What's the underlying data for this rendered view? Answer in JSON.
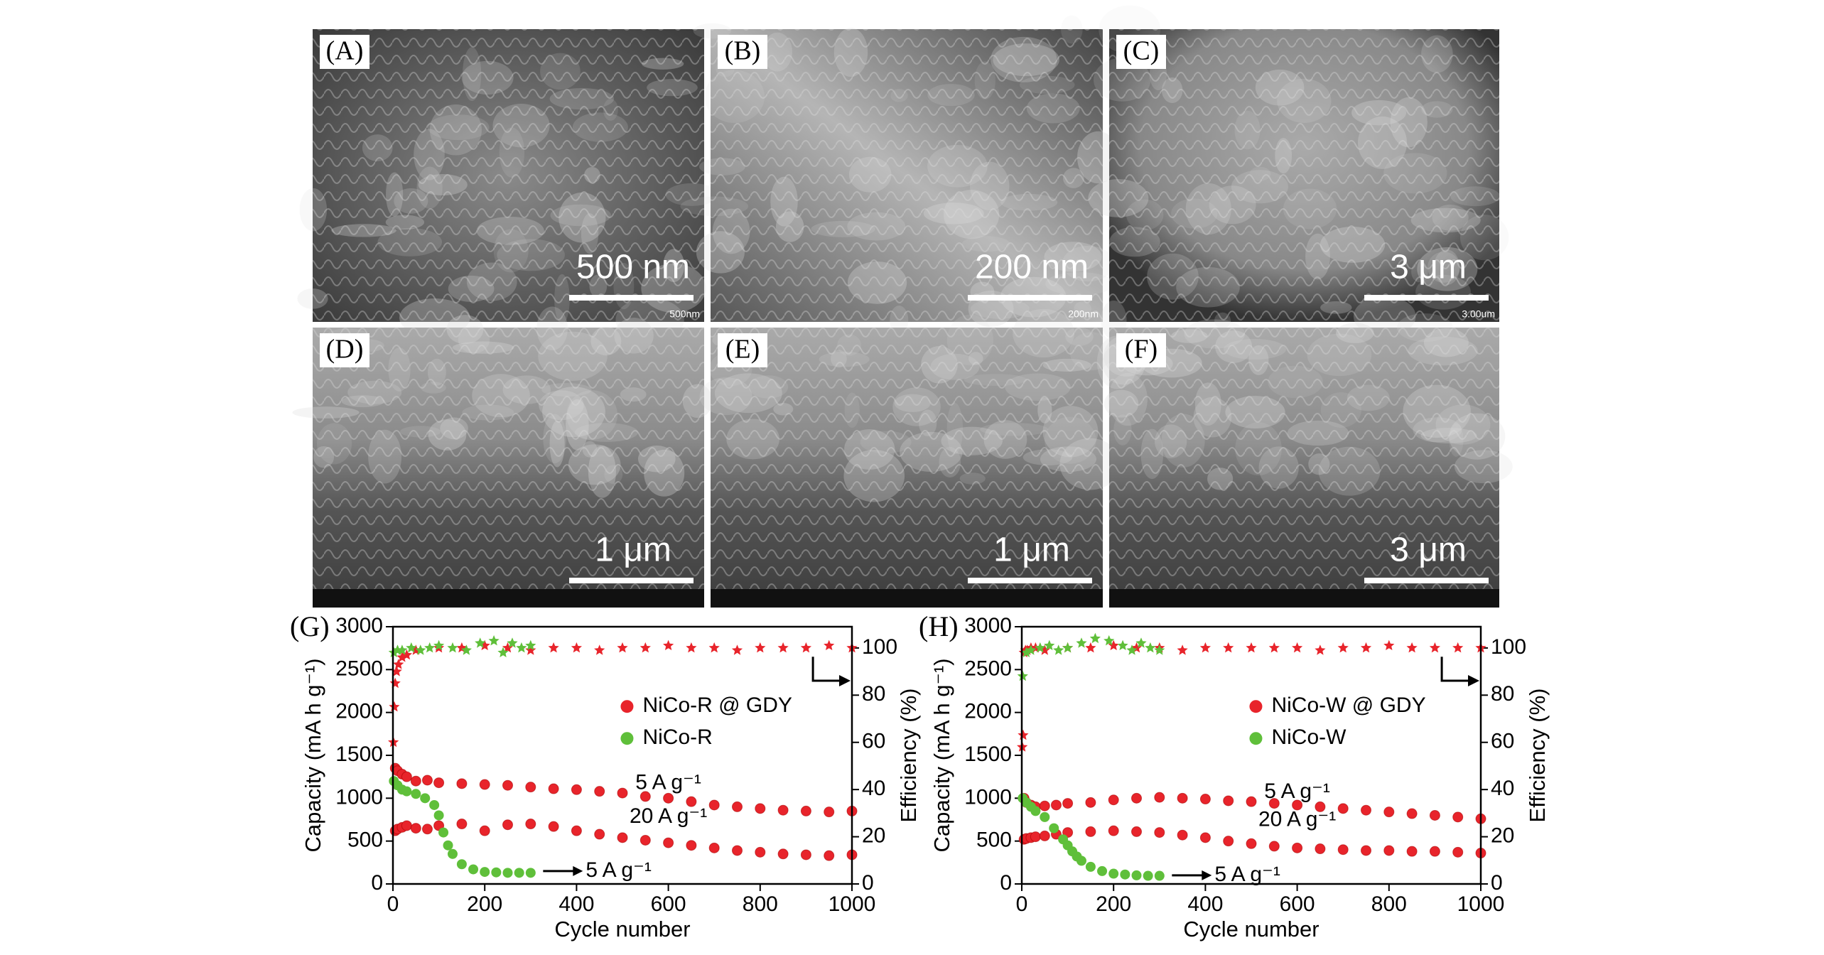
{
  "panels": [
    {
      "label": "(A)",
      "scale": "500 nm",
      "small": "500nm"
    },
    {
      "label": "(B)",
      "scale": "200 nm",
      "small": "200nm"
    },
    {
      "label": "(C)",
      "scale": "3 μm",
      "small": "3.00um"
    },
    {
      "label": "(D)",
      "scale": "1 μm"
    },
    {
      "label": "(E)",
      "scale": "1 μm"
    },
    {
      "label": "(F)",
      "scale": "3 μm"
    }
  ],
  "chart_data": [
    {
      "type": "scatter",
      "panel_label": "(G)",
      "xlabel": "Cycle number",
      "ylabel": "Capacity (mA h g⁻¹)",
      "y2label": "Efficiency (%)",
      "xlim": [
        0,
        1000
      ],
      "xticks": [
        0,
        200,
        400,
        600,
        800,
        1000
      ],
      "ylim": [
        0,
        3000
      ],
      "yticks": [
        0,
        500,
        1000,
        1500,
        2000,
        2500,
        3000
      ],
      "y2lim": [
        0,
        109
      ],
      "y2ticks": [
        0,
        20,
        40,
        60,
        80,
        100
      ],
      "annotations": [
        "5 A g⁻¹",
        "20 A g⁻¹",
        "5 A g⁻¹"
      ],
      "series": [
        {
          "name": "NiCo-R @ GDY",
          "color": "#e8242b",
          "marker": "circle",
          "x": [
            5,
            10,
            20,
            30,
            50,
            75,
            100,
            150,
            200,
            250,
            300,
            350,
            400,
            450,
            500,
            550,
            600,
            650,
            700,
            750,
            800,
            850,
            900,
            950,
            1000
          ],
          "values": [
            1350,
            1320,
            1280,
            1250,
            1200,
            1210,
            1180,
            1170,
            1160,
            1150,
            1130,
            1110,
            1100,
            1080,
            1060,
            1020,
            1000,
            960,
            920,
            900,
            880,
            860,
            850,
            840,
            850
          ]
        },
        {
          "color": "#e8242b",
          "marker": "circle",
          "x": [
            5,
            10,
            20,
            30,
            50,
            75,
            100,
            150,
            200,
            250,
            300,
            350,
            400,
            450,
            500,
            550,
            600,
            650,
            700,
            750,
            800,
            850,
            900,
            950,
            1000
          ],
          "values": [
            620,
            640,
            660,
            680,
            650,
            640,
            680,
            700,
            620,
            690,
            700,
            670,
            620,
            580,
            540,
            510,
            480,
            450,
            420,
            390,
            370,
            350,
            340,
            330,
            340
          ]
        },
        {
          "name": "NiCo-R",
          "color": "#5fbf3a",
          "marker": "circle",
          "x": [
            2,
            10,
            20,
            30,
            50,
            70,
            90,
            100,
            110,
            120,
            130,
            150,
            175,
            200,
            225,
            250,
            275,
            300
          ],
          "values": [
            1200,
            1150,
            1100,
            1080,
            1050,
            1000,
            920,
            800,
            600,
            450,
            350,
            230,
            170,
            140,
            135,
            130,
            130,
            130
          ]
        },
        {
          "color": "#e8242b",
          "marker": "star",
          "axis": "y2",
          "x": [
            1,
            3,
            5,
            8,
            12,
            20,
            30,
            50,
            100,
            150,
            200,
            250,
            300,
            350,
            400,
            450,
            500,
            550,
            600,
            650,
            700,
            750,
            800,
            850,
            900,
            950,
            1000
          ],
          "values": [
            60,
            75,
            85,
            90,
            93,
            96,
            97,
            99,
            100,
            100,
            101,
            100,
            99,
            100,
            100,
            99,
            100,
            100,
            101,
            100,
            100,
            99,
            100,
            100,
            100,
            101,
            100
          ]
        },
        {
          "color": "#5fbf3a",
          "marker": "star",
          "axis": "y2",
          "x": [
            2,
            10,
            20,
            40,
            60,
            80,
            100,
            130,
            160,
            190,
            220,
            240,
            260,
            280,
            300
          ],
          "values": [
            98,
            99,
            99,
            100,
            99,
            100,
            101,
            100,
            99,
            102,
            103,
            98,
            102,
            100,
            101
          ]
        }
      ]
    },
    {
      "type": "scatter",
      "panel_label": "(H)",
      "xlabel": "Cycle number",
      "ylabel": "Capacity (mA h g⁻¹)",
      "y2label": "Efficiency (%)",
      "xlim": [
        0,
        1000
      ],
      "xticks": [
        0,
        200,
        400,
        600,
        800,
        1000
      ],
      "ylim": [
        0,
        3000
      ],
      "yticks": [
        0,
        500,
        1000,
        1500,
        2000,
        2500,
        3000
      ],
      "y2lim": [
        0,
        109
      ],
      "y2ticks": [
        0,
        20,
        40,
        60,
        80,
        100
      ],
      "annotations": [
        "5 A g⁻¹",
        "20 A g⁻¹",
        "5 A g⁻¹"
      ],
      "series": [
        {
          "name": "NiCo-W @ GDY",
          "color": "#e8242b",
          "marker": "circle",
          "x": [
            5,
            10,
            20,
            30,
            50,
            75,
            100,
            150,
            200,
            250,
            300,
            350,
            400,
            450,
            500,
            550,
            600,
            650,
            700,
            750,
            800,
            850,
            900,
            950,
            1000
          ],
          "values": [
            1000,
            950,
            920,
            900,
            910,
            920,
            940,
            950,
            980,
            1000,
            1010,
            1000,
            990,
            970,
            960,
            940,
            920,
            900,
            880,
            860,
            840,
            820,
            800,
            780,
            760
          ]
        },
        {
          "color": "#e8242b",
          "marker": "circle",
          "x": [
            5,
            10,
            20,
            30,
            50,
            75,
            100,
            150,
            200,
            250,
            300,
            350,
            400,
            450,
            500,
            550,
            600,
            650,
            700,
            750,
            800,
            850,
            900,
            950,
            1000
          ],
          "values": [
            520,
            530,
            540,
            550,
            560,
            580,
            600,
            610,
            620,
            610,
            600,
            570,
            540,
            500,
            470,
            440,
            420,
            410,
            400,
            390,
            390,
            380,
            380,
            370,
            360
          ]
        },
        {
          "name": "NiCo-W",
          "color": "#5fbf3a",
          "marker": "circle",
          "x": [
            2,
            10,
            20,
            30,
            50,
            70,
            90,
            100,
            110,
            120,
            130,
            150,
            175,
            200,
            225,
            250,
            275,
            300
          ],
          "values": [
            1000,
            950,
            900,
            850,
            780,
            650,
            520,
            450,
            380,
            320,
            270,
            200,
            150,
            120,
            110,
            100,
            95,
            95
          ]
        },
        {
          "color": "#e8242b",
          "marker": "star",
          "axis": "y2",
          "x": [
            1,
            3,
            5,
            8,
            12,
            20,
            30,
            50,
            100,
            150,
            200,
            250,
            300,
            350,
            400,
            450,
            500,
            550,
            600,
            650,
            700,
            750,
            800,
            850,
            900,
            950,
            1000
          ],
          "values": [
            58,
            63,
            98,
            99,
            99,
            100,
            100,
            99,
            100,
            100,
            101,
            100,
            100,
            99,
            100,
            100,
            100,
            100,
            100,
            99,
            100,
            100,
            101,
            100,
            100,
            100,
            100
          ]
        },
        {
          "color": "#5fbf3a",
          "marker": "star",
          "axis": "y2",
          "x": [
            2,
            10,
            20,
            40,
            60,
            80,
            100,
            130,
            160,
            190,
            220,
            240,
            260,
            280,
            300
          ],
          "values": [
            88,
            98,
            99,
            100,
            101,
            99,
            100,
            102,
            104,
            103,
            101,
            99,
            102,
            100,
            99
          ]
        }
      ]
    }
  ]
}
